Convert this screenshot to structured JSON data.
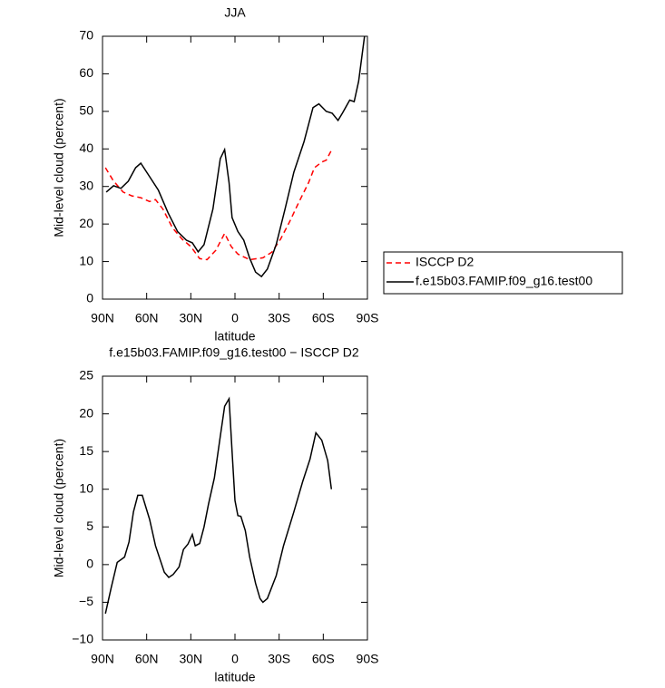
{
  "chart_data": [
    {
      "type": "line",
      "title": "JJA",
      "xlabel": "latitude",
      "ylabel": "Mid-level cloud (percent)",
      "xlim": [
        90,
        -90
      ],
      "ylim": [
        0,
        70
      ],
      "xticks": [
        {
          "value": 90,
          "label": "90N"
        },
        {
          "value": 60,
          "label": "60N"
        },
        {
          "value": 30,
          "label": "30N"
        },
        0,
        {
          "value": -30,
          "label": "30S"
        },
        {
          "value": -60,
          "label": "60S"
        },
        {
          "value": -90,
          "label": "90S"
        }
      ],
      "yticks": [
        0,
        10,
        20,
        30,
        40,
        50,
        60,
        70
      ],
      "series": [
        {
          "name": "ISCCP D2",
          "color": "#ff0000",
          "dash": true,
          "x": [
            88,
            82.6,
            76,
            70,
            64,
            58,
            54,
            49,
            42.5,
            36,
            30,
            24,
            19,
            13,
            7,
            2.5,
            -2,
            -10,
            -19,
            -25,
            -31,
            -37,
            -43,
            -50,
            -54,
            -59,
            -62,
            -66
          ],
          "values": [
            35,
            31.5,
            28.5,
            27.5,
            27,
            26,
            26.5,
            24,
            19,
            16,
            14,
            10.8,
            10.5,
            13,
            17.5,
            14,
            12,
            10.5,
            11,
            12.5,
            16,
            20.5,
            25.5,
            31,
            35,
            36.5,
            37,
            40
          ]
        },
        {
          "name": "f.e15b03.FAMIP.f09_g16.test00",
          "color": "#000000",
          "dash": false,
          "x": [
            87.5,
            82.5,
            77.5,
            72.5,
            67.5,
            64,
            58,
            52,
            45.5,
            39,
            33,
            29,
            25,
            21,
            15,
            10,
            7,
            4,
            2,
            -2,
            -6,
            -10,
            -14,
            -18,
            -22,
            -28,
            -34,
            -40,
            -47,
            -53,
            -57,
            -62,
            -66,
            -70,
            -73,
            -78,
            -81,
            -84,
            -88
          ],
          "values": [
            28.5,
            30.2,
            29.5,
            31.4,
            35,
            36.2,
            32.6,
            29,
            23,
            18,
            15.7,
            15,
            12.6,
            14.5,
            24,
            37.4,
            39.8,
            31,
            21.7,
            18,
            15.7,
            10.9,
            7.2,
            6,
            8,
            14.5,
            24,
            33.8,
            42,
            51,
            52,
            50,
            49.5,
            47.6,
            49.5,
            53,
            52.6,
            58,
            70
          ]
        }
      ]
    },
    {
      "type": "line",
      "title": "f.e15b03.FAMIP.f09_g16.test00 − ISCCP D2",
      "xlabel": "latitude",
      "ylabel": "Mid-level cloud (percent)",
      "xlim": [
        90,
        -90
      ],
      "ylim": [
        -10,
        25
      ],
      "xticks": [
        {
          "value": 90,
          "label": "90N"
        },
        {
          "value": 60,
          "label": "60N"
        },
        {
          "value": 30,
          "label": "30N"
        },
        0,
        {
          "value": -30,
          "label": "30S"
        },
        {
          "value": -60,
          "label": "60S"
        },
        {
          "value": -90,
          "label": "90S"
        }
      ],
      "yticks": [
        {
          "value": -10,
          "label": "−10"
        },
        {
          "value": -5,
          "label": "−5"
        },
        0,
        5,
        10,
        15,
        20,
        25
      ],
      "series": [
        {
          "color": "#000000",
          "dash": false,
          "x": [
            88,
            84,
            80,
            75,
            72,
            69,
            66,
            63,
            58,
            54,
            48,
            45,
            42,
            38,
            35,
            32,
            29,
            27,
            24,
            21,
            18,
            14,
            10,
            7,
            4,
            2,
            0,
            -2,
            -4,
            -7,
            -10,
            -14,
            -17,
            -19,
            -22,
            -28,
            -33,
            -40,
            -46,
            -51,
            -55,
            -59,
            -63,
            -65.5
          ],
          "values": [
            -6.5,
            -3,
            0.3,
            1,
            3,
            7,
            9.2,
            9.2,
            6,
            2.5,
            -1,
            -1.7,
            -1.3,
            -0.3,
            2,
            2.7,
            4,
            2.5,
            2.8,
            5,
            8,
            11.5,
            17,
            21,
            22,
            15,
            8.5,
            6.5,
            6.4,
            4.5,
            1,
            -2.5,
            -4.5,
            -5,
            -4.5,
            -1.5,
            2.5,
            7,
            11,
            14,
            17.5,
            16.5,
            13.8,
            10
          ]
        }
      ]
    }
  ]
}
